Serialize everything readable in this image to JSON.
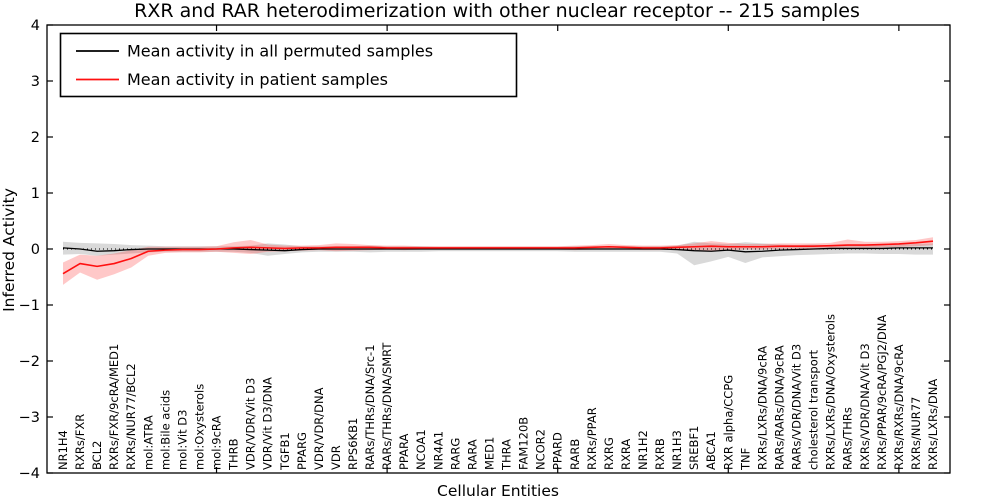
{
  "chart_data": {
    "type": "line",
    "title": "RXR and RAR heterodimerization with other nuclear receptor -- 215 samples",
    "xlabel": "Cellular Entities",
    "ylabel": "Inferred Activity",
    "ylim": [
      -4,
      4
    ],
    "yticks": [
      -4,
      -3,
      -2,
      -1,
      0,
      1,
      2,
      3,
      4
    ],
    "xticks": [
      10,
      20,
      30,
      40,
      50
    ],
    "grid": false,
    "legend_position": "upper left",
    "zero_line": {
      "style": "dotted",
      "color": "#000000",
      "y": 0
    },
    "categories": [
      "NR1H4",
      "RXRs/FXR",
      "BCL2",
      "RXRs/FXR/9cRA/MED1",
      "RXRs/NUR77/BCL2",
      "mol:ATRA",
      "mol:Bile acids",
      "mol:Vit D3",
      "mol:Oxysterols",
      "mol:9cRA",
      "THRB",
      "VDR/VDR/Vit D3",
      "VDR/Vit D3/DNA",
      "TGFB1",
      "PPARG",
      "VDR/VDR/DNA",
      "VDR",
      "RPS6KB1",
      "RARs/THRs/DNA/Src-1",
      "RARs/THRs/DNA/SMRT",
      "PPARA",
      "NCOA1",
      "NR4A1",
      "RARG",
      "RARA",
      "MED1",
      "THRA",
      "FAM120B",
      "NCOR2",
      "PPARD",
      "RARB",
      "RXRs/PPAR",
      "RXRG",
      "RXRA",
      "NR1H2",
      "RXRB",
      "NR1H3",
      "SREBF1",
      "ABCA1",
      "RXR alpha/CCPG",
      "TNF",
      "RXRs/LXRs/DNA/9cRA",
      "RARs/RARs/DNA/9cRA",
      "RARs/VDR/DNA/Vit D3",
      "cholesterol transport",
      "RXRs/LXRs/DNA/Oxysterols",
      "RARs/THRs",
      "RXRs/VDR/DNA/Vit D3",
      "RXRs/PPAR/9cRA/PGJ2/DNA",
      "RXRs/RXRs/DNA/9cRA",
      "RXRs/NUR77",
      "RXRs/LXRs/DNA"
    ],
    "series": [
      {
        "name": "Mean activity in all permuted samples",
        "color": "#000000",
        "band_color": "#888888",
        "band_opacity": 0.32,
        "values": [
          0.02,
          0.0,
          -0.04,
          -0.03,
          -0.01,
          0.0,
          0.0,
          0.0,
          0.0,
          0.0,
          0.0,
          -0.01,
          -0.02,
          -0.03,
          -0.01,
          0.0,
          0.0,
          0.0,
          0.0,
          0.0,
          0.0,
          0.0,
          0.0,
          0.0,
          0.0,
          0.0,
          0.0,
          0.0,
          0.0,
          0.0,
          0.0,
          0.0,
          0.0,
          0.0,
          0.0,
          0.0,
          -0.01,
          -0.03,
          -0.04,
          -0.02,
          -0.05,
          -0.04,
          -0.02,
          -0.01,
          0.0,
          0.01,
          0.01,
          0.01,
          0.01,
          0.02,
          0.02,
          0.02
        ],
        "band_upper": [
          0.13,
          0.11,
          0.1,
          0.09,
          0.07,
          0.06,
          0.05,
          0.05,
          0.05,
          0.05,
          0.05,
          0.06,
          0.1,
          0.08,
          0.05,
          0.05,
          0.05,
          0.05,
          0.06,
          0.05,
          0.05,
          0.05,
          0.04,
          0.04,
          0.04,
          0.04,
          0.04,
          0.04,
          0.04,
          0.04,
          0.05,
          0.05,
          0.05,
          0.05,
          0.05,
          0.05,
          0.06,
          0.13,
          0.1,
          0.09,
          0.12,
          0.1,
          0.08,
          0.07,
          0.08,
          0.07,
          0.06,
          0.06,
          0.07,
          0.08,
          0.09,
          0.1
        ],
        "band_lower": [
          -0.1,
          -0.09,
          -0.12,
          -0.1,
          -0.08,
          -0.06,
          -0.05,
          -0.05,
          -0.05,
          -0.05,
          -0.05,
          -0.07,
          -0.12,
          -0.09,
          -0.06,
          -0.05,
          -0.05,
          -0.05,
          -0.06,
          -0.05,
          -0.05,
          -0.05,
          -0.04,
          -0.04,
          -0.04,
          -0.04,
          -0.04,
          -0.04,
          -0.04,
          -0.04,
          -0.05,
          -0.05,
          -0.05,
          -0.05,
          -0.05,
          -0.05,
          -0.08,
          -0.29,
          -0.22,
          -0.14,
          -0.25,
          -0.15,
          -0.13,
          -0.11,
          -0.1,
          -0.09,
          -0.08,
          -0.08,
          -0.09,
          -0.09,
          -0.1,
          -0.1
        ]
      },
      {
        "name": "Mean activity in patient samples",
        "color": "#ff1010",
        "band_color": "#ff3b3b",
        "band_opacity": 0.28,
        "values": [
          -0.44,
          -0.26,
          -0.31,
          -0.26,
          -0.17,
          -0.04,
          -0.02,
          -0.01,
          -0.01,
          0.0,
          0.02,
          0.03,
          0.02,
          0.01,
          0.02,
          0.02,
          0.03,
          0.03,
          0.03,
          0.02,
          0.02,
          0.02,
          0.02,
          0.02,
          0.02,
          0.02,
          0.02,
          0.02,
          0.02,
          0.02,
          0.02,
          0.03,
          0.04,
          0.03,
          0.02,
          0.02,
          0.03,
          0.04,
          0.05,
          0.04,
          0.04,
          0.04,
          0.05,
          0.05,
          0.05,
          0.06,
          0.07,
          0.07,
          0.08,
          0.09,
          0.11,
          0.14
        ],
        "band_upper": [
          -0.24,
          -0.1,
          -0.12,
          -0.08,
          -0.02,
          0.04,
          0.04,
          0.04,
          0.04,
          0.05,
          0.12,
          0.16,
          0.08,
          0.06,
          0.06,
          0.07,
          0.1,
          0.09,
          0.07,
          0.06,
          0.06,
          0.05,
          0.05,
          0.05,
          0.05,
          0.05,
          0.05,
          0.05,
          0.05,
          0.05,
          0.06,
          0.07,
          0.09,
          0.07,
          0.06,
          0.06,
          0.07,
          0.1,
          0.14,
          0.11,
          0.09,
          0.09,
          0.1,
          0.1,
          0.1,
          0.11,
          0.17,
          0.13,
          0.13,
          0.14,
          0.16,
          0.21
        ],
        "band_lower": [
          -0.64,
          -0.42,
          -0.55,
          -0.45,
          -0.33,
          -0.12,
          -0.07,
          -0.06,
          -0.06,
          -0.05,
          -0.07,
          -0.09,
          -0.05,
          -0.04,
          -0.03,
          -0.02,
          -0.04,
          -0.03,
          -0.02,
          -0.01,
          -0.02,
          -0.01,
          -0.01,
          -0.01,
          -0.01,
          -0.01,
          -0.01,
          -0.01,
          -0.01,
          -0.01,
          -0.02,
          -0.01,
          -0.01,
          -0.01,
          -0.02,
          -0.02,
          -0.01,
          -0.02,
          -0.03,
          -0.02,
          -0.01,
          -0.01,
          0.0,
          0.0,
          0.0,
          0.01,
          0.02,
          0.02,
          0.03,
          0.04,
          0.05,
          0.07
        ]
      }
    ]
  }
}
